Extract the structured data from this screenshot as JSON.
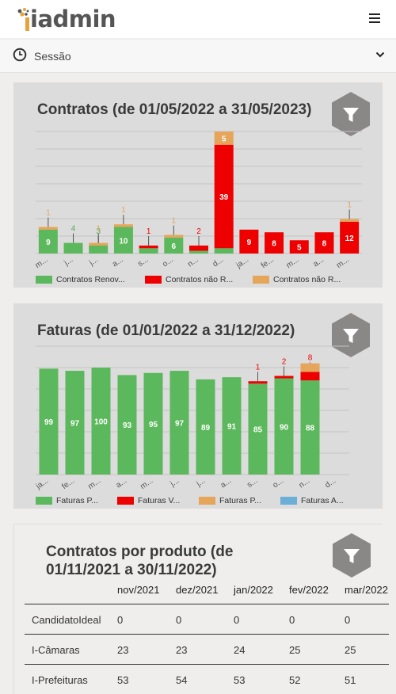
{
  "app": {
    "logo_text": "iadmin"
  },
  "session": {
    "label": "Sessão"
  },
  "colors": {
    "green": "#5cb85c",
    "red": "#ee0000",
    "orange": "#e5a55a",
    "blue": "#6baed6",
    "filter_button": "#8a8787"
  },
  "contracts_card": {
    "title": "Contratos (de 01/05/2022 a 31/05/2023)",
    "legend": [
      "Contratos Renov...",
      "Contratos não R...",
      "Contratos não R..."
    ]
  },
  "invoices_card": {
    "title": "Faturas (de 01/01/2022 a 31/12/2022)",
    "legend": [
      "Faturas P...",
      "Faturas V...",
      "Faturas P...",
      "Faturas A..."
    ]
  },
  "chart_data": [
    {
      "type": "bar",
      "stacked": true,
      "title": "Contratos (de 01/05/2022 a 31/05/2023)",
      "categories": [
        "m...",
        "j...",
        "j...",
        "a...",
        "s...",
        "o...",
        "n...",
        "d...",
        "ja...",
        "fe...",
        "m...",
        "a...",
        "m..."
      ],
      "series": [
        {
          "name": "Contratos Renov...",
          "color": "#5cb85c",
          "values": [
            9,
            4,
            3,
            10,
            2,
            6,
            1,
            2,
            0,
            0,
            0,
            0,
            0
          ],
          "labels": [
            "9",
            "4",
            "3",
            "10",
            "",
            "6",
            "",
            "2",
            "",
            "",
            "",
            "",
            ""
          ]
        },
        {
          "name": "Contratos não R...",
          "color": "#ee0000",
          "values": [
            0,
            0,
            0,
            0,
            1,
            0,
            2,
            39,
            9,
            8,
            5,
            8,
            12
          ],
          "labels": [
            "",
            "",
            "",
            "",
            "1",
            "",
            "2",
            "39",
            "9",
            "8",
            "5",
            "8",
            "12"
          ]
        },
        {
          "name": "Contratos não R...",
          "color": "#e5a55a",
          "values": [
            1,
            0,
            1,
            1,
            0,
            1,
            0,
            5,
            0,
            0,
            0,
            0,
            1
          ],
          "labels": [
            "1",
            "",
            "1",
            "1",
            "",
            "1",
            "",
            "5",
            "",
            "",
            "",
            "",
            "1"
          ]
        }
      ],
      "ylim": [
        0,
        46
      ],
      "grid": true,
      "legend_position": "bottom"
    },
    {
      "type": "bar",
      "stacked": true,
      "title": "Faturas (de 01/01/2022 a 31/12/2022)",
      "categories": [
        "ja...",
        "fe...",
        "m...",
        "a...",
        "m...",
        "j...",
        "j...",
        "a...",
        "s...",
        "o...",
        "n...",
        "d..."
      ],
      "series": [
        {
          "name": "Faturas P...",
          "color": "#5cb85c",
          "values": [
            99,
            97,
            100,
            93,
            95,
            97,
            89,
            91,
            85,
            90,
            88,
            0
          ],
          "labels": [
            "99",
            "97",
            "100",
            "93",
            "95",
            "97",
            "89",
            "91",
            "85",
            "90",
            "88",
            ""
          ]
        },
        {
          "name": "Faturas V...",
          "color": "#ee0000",
          "values": [
            0,
            0,
            0,
            0,
            0,
            0,
            0,
            0,
            1,
            2,
            8,
            0
          ],
          "labels": [
            "",
            "",
            "",
            "",
            "",
            "",
            "",
            "",
            "1",
            "2",
            "8",
            ""
          ]
        },
        {
          "name": "Faturas P...",
          "color": "#e5a55a",
          "values": [
            0,
            0,
            0,
            0,
            0,
            0,
            0,
            0,
            0,
            0,
            8,
            0
          ],
          "labels": [
            "",
            "",
            "",
            "",
            "",
            "",
            "",
            "",
            "",
            "",
            "",
            ""
          ]
        },
        {
          "name": "Faturas A...",
          "color": "#6baed6",
          "values": [
            0,
            0,
            0,
            0,
            0,
            0,
            0,
            0,
            0,
            0,
            0,
            0
          ],
          "labels": [
            "",
            "",
            "",
            "",
            "",
            "",
            "",
            "",
            "",
            "",
            "",
            ""
          ]
        }
      ],
      "ylim": [
        0,
        120
      ],
      "grid": true,
      "legend_position": "bottom"
    }
  ],
  "products_table": {
    "title": "Contratos por produto (de 01/11/2021 a 30/11/2022)",
    "columns": [
      "nov/2021",
      "dez/2021",
      "jan/2022",
      "fev/2022",
      "mar/2022"
    ],
    "rows": [
      {
        "product": "CandidatoIdeal",
        "values": [
          "0",
          "0",
          "0",
          "0",
          "0"
        ]
      },
      {
        "product": "I-Câmaras",
        "values": [
          "23",
          "23",
          "24",
          "25",
          "25"
        ]
      },
      {
        "product": "I-Prefeituras",
        "values": [
          "53",
          "54",
          "53",
          "52",
          "51"
        ]
      }
    ]
  }
}
